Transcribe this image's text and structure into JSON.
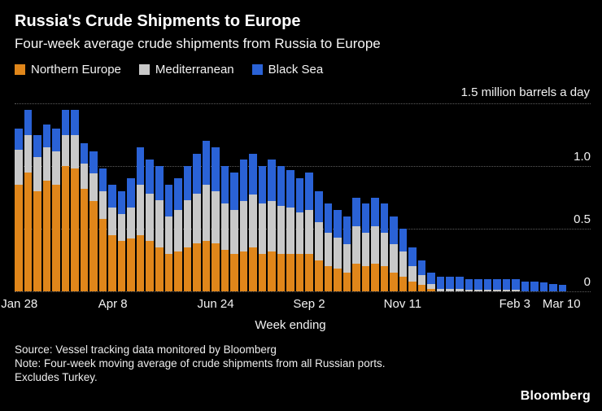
{
  "colors": {
    "background": "#000000",
    "northern_europe": "#E0861A",
    "mediterranean": "#C9C9C9",
    "black_sea": "#2A62D6",
    "gridline": "#5C5C5C",
    "text": "#FFFFFF"
  },
  "header": {
    "title": "Russia's Crude Shipments to Europe",
    "subtitle": "Four-week average crude shipments from Russia to Europe"
  },
  "legend": [
    {
      "label": "Northern Europe",
      "color": "#E0861A"
    },
    {
      "label": "Mediterranean",
      "color": "#C9C9C9"
    },
    {
      "label": "Black Sea",
      "color": "#2A62D6"
    }
  ],
  "chart_data": {
    "type": "bar",
    "stacked": true,
    "title": "Russia's Crude Shipments to Europe",
    "unit_label": "1.5 million barrels a day",
    "xlabel": "Week ending",
    "ylabel": "million barrels a day",
    "ylim": [
      0,
      1.5
    ],
    "yticks": [
      0,
      0.5,
      1.0,
      1.5
    ],
    "ytick_labels": [
      {
        "text": "1.0",
        "value": 1.0
      },
      {
        "text": "0.5",
        "value": 0.5
      },
      {
        "text": "0",
        "value": 0
      }
    ],
    "x_tick_labels": [
      {
        "label": "Jan 28",
        "index": 0
      },
      {
        "label": "Apr 8",
        "index": 10
      },
      {
        "label": "Jun 24",
        "index": 21
      },
      {
        "label": "Sep 2",
        "index": 31
      },
      {
        "label": "Nov 11",
        "index": 41
      },
      {
        "label": "Feb 3",
        "index": 53
      },
      {
        "label": "Mar 10",
        "index": 58
      }
    ],
    "series": [
      {
        "name": "Northern Europe",
        "key": "northern-europe",
        "color": "#E0861A",
        "values": [
          0.85,
          0.95,
          0.8,
          0.88,
          0.85,
          1.0,
          0.98,
          0.82,
          0.72,
          0.58,
          0.45,
          0.4,
          0.42,
          0.45,
          0.4,
          0.35,
          0.3,
          0.32,
          0.35,
          0.38,
          0.4,
          0.38,
          0.33,
          0.3,
          0.32,
          0.35,
          0.3,
          0.32,
          0.3,
          0.3,
          0.3,
          0.3,
          0.25,
          0.2,
          0.18,
          0.15,
          0.22,
          0.2,
          0.22,
          0.2,
          0.15,
          0.12,
          0.08,
          0.05,
          0.02,
          0.0,
          0.0,
          0.0,
          0.0,
          0.0,
          0.0,
          0.0,
          0.0,
          0.0,
          0.0,
          0.0,
          0.0,
          0.0,
          0.0
        ]
      },
      {
        "name": "Mediterranean",
        "key": "mediterranean",
        "color": "#C9C9C9",
        "values": [
          0.28,
          0.3,
          0.27,
          0.27,
          0.27,
          0.25,
          0.27,
          0.2,
          0.22,
          0.22,
          0.22,
          0.22,
          0.25,
          0.4,
          0.38,
          0.38,
          0.3,
          0.33,
          0.38,
          0.4,
          0.45,
          0.42,
          0.37,
          0.35,
          0.4,
          0.42,
          0.4,
          0.4,
          0.38,
          0.37,
          0.33,
          0.35,
          0.3,
          0.27,
          0.25,
          0.23,
          0.3,
          0.27,
          0.3,
          0.27,
          0.23,
          0.2,
          0.12,
          0.08,
          0.04,
          0.02,
          0.02,
          0.02,
          0.01,
          0.01,
          0.01,
          0.01,
          0.01,
          0.01,
          0.0,
          0.0,
          0.0,
          0.0,
          0.0
        ]
      },
      {
        "name": "Black Sea",
        "key": "black-sea",
        "color": "#2A62D6",
        "values": [
          0.17,
          0.2,
          0.18,
          0.18,
          0.18,
          0.2,
          0.2,
          0.16,
          0.18,
          0.18,
          0.18,
          0.18,
          0.23,
          0.3,
          0.27,
          0.27,
          0.25,
          0.25,
          0.27,
          0.32,
          0.35,
          0.35,
          0.3,
          0.3,
          0.33,
          0.33,
          0.3,
          0.33,
          0.32,
          0.3,
          0.27,
          0.3,
          0.25,
          0.23,
          0.22,
          0.22,
          0.23,
          0.23,
          0.23,
          0.23,
          0.22,
          0.18,
          0.15,
          0.12,
          0.09,
          0.1,
          0.1,
          0.1,
          0.09,
          0.09,
          0.09,
          0.09,
          0.09,
          0.09,
          0.08,
          0.08,
          0.07,
          0.06,
          0.05
        ]
      }
    ]
  },
  "footer": {
    "source": "Source: Vessel tracking data monitored by Bloomberg",
    "note_line1": "Note: Four-week moving average of crude shipments from all Russian ports.",
    "note_line2": "Excludes Turkey.",
    "brand": "Bloomberg"
  }
}
